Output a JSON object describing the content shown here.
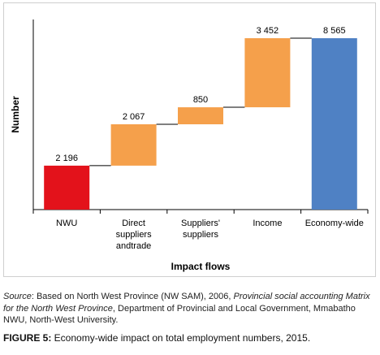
{
  "chart_data": {
    "type": "bar",
    "subtype": "waterfall",
    "categories": [
      "NWU",
      "Direct suppliers andtrade",
      "Suppliers' suppliers",
      "Income",
      "Economy-wide"
    ],
    "category_lines": [
      [
        "NWU"
      ],
      [
        "Direct",
        "suppliers",
        "andtrade"
      ],
      [
        "Suppliers'",
        "suppliers"
      ],
      [
        "Income"
      ],
      [
        "Economy-wide"
      ]
    ],
    "values": [
      2196,
      2067,
      850,
      3452,
      8565
    ],
    "value_labels": [
      "2 196",
      "2 067",
      "850",
      "3 452",
      "8 565"
    ],
    "bar_roles": [
      "start",
      "increment",
      "increment",
      "increment",
      "total"
    ],
    "colors": [
      "#e3121b",
      "#f5a04b",
      "#f5a04b",
      "#f5a04b",
      "#4f81c4"
    ],
    "xlabel": "Impact flows",
    "ylabel": "Number",
    "ylim": [
      0,
      9500
    ],
    "grid": false,
    "connector_lines": true
  },
  "source": {
    "label": "Source",
    "text_plain": ": Based on North West Province (NW SAM), 2006, ",
    "text_italic": "Provincial social accounting Matrix for the North West Province",
    "text_tail": ", Department of Provincial and Local Government, Mmabatho NWU, North-West University."
  },
  "caption": {
    "label": "FIGURE 5:",
    "text": " Economy-wide impact on total employment numbers, 2015."
  }
}
